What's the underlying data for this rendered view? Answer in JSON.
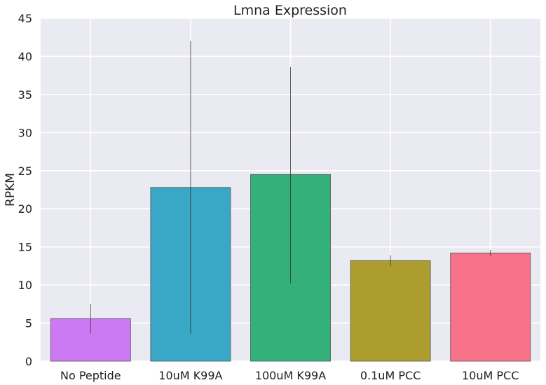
{
  "chart_data": {
    "type": "bar",
    "title": "Lmna Expression",
    "xlabel": "",
    "ylabel": "RPKM",
    "ylim": [
      0,
      45
    ],
    "yticks": [
      0,
      5,
      10,
      15,
      20,
      25,
      30,
      35,
      40,
      45
    ],
    "grid": true,
    "categories": [
      "No Peptide",
      "10uM K99A",
      "100uM K99A",
      "0.1uM PCC",
      "10uM PCC"
    ],
    "values": [
      5.6,
      22.8,
      24.5,
      13.2,
      14.2
    ],
    "error_low": [
      3.6,
      3.6,
      10.2,
      12.5,
      13.8
    ],
    "error_high": [
      7.5,
      42.0,
      38.6,
      13.9,
      14.6
    ],
    "colors": [
      "#cc79f4",
      "#39a7c6",
      "#34b07a",
      "#ad9d2f",
      "#f77189"
    ],
    "background_color": "#eaeaf2",
    "grid_color": "#ffffff"
  }
}
